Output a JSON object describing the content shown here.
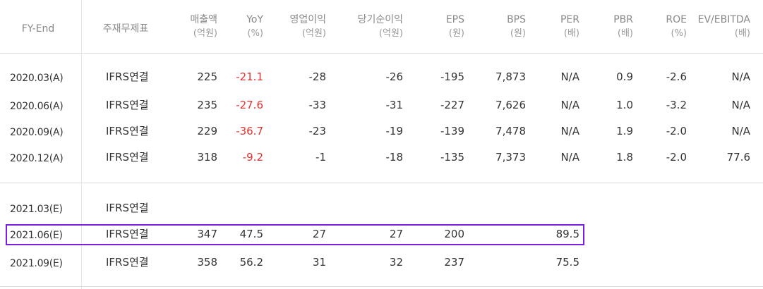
{
  "headers": [
    {
      "key": "fy",
      "l1": "FY-End",
      "l2": ""
    },
    {
      "key": "acct",
      "l1": "주재무제표",
      "l2": ""
    },
    {
      "key": "rev",
      "l1": "매출액",
      "l2": "(억원)"
    },
    {
      "key": "yoy",
      "l1": "YoY",
      "l2": "(%)"
    },
    {
      "key": "op",
      "l1": "영업이익",
      "l2": "(억원)"
    },
    {
      "key": "net",
      "l1": "당기순이익",
      "l2": "(억원)"
    },
    {
      "key": "eps",
      "l1": "EPS",
      "l2": "(원)"
    },
    {
      "key": "bps",
      "l1": "BPS",
      "l2": "(원)"
    },
    {
      "key": "per",
      "l1": "PER",
      "l2": "(배)"
    },
    {
      "key": "pbr",
      "l1": "PBR",
      "l2": "(배)"
    },
    {
      "key": "roe",
      "l1": "ROE",
      "l2": "(%)"
    },
    {
      "key": "ev",
      "l1": "EV/EBITDA",
      "l2": "(배)"
    }
  ],
  "rows": [
    {
      "fy": "2020.03(A)",
      "acct": "IFRS연결",
      "rev": "225",
      "yoy": "-21.1",
      "op": "-28",
      "net": "-26",
      "eps": "-195",
      "bps": "7,873",
      "per": "N/A",
      "pbr": "0.9",
      "roe": "-2.6",
      "ev": "N/A"
    },
    {
      "fy": "2020.06(A)",
      "acct": "IFRS연결",
      "rev": "235",
      "yoy": "-27.6",
      "op": "-33",
      "net": "-31",
      "eps": "-227",
      "bps": "7,626",
      "per": "N/A",
      "pbr": "1.0",
      "roe": "-3.2",
      "ev": "N/A"
    },
    {
      "fy": "2020.09(A)",
      "acct": "IFRS연결",
      "rev": "229",
      "yoy": "-36.7",
      "op": "-23",
      "net": "-19",
      "eps": "-139",
      "bps": "7,478",
      "per": "N/A",
      "pbr": "1.9",
      "roe": "-2.0",
      "ev": "N/A"
    },
    {
      "fy": "2020.12(A)",
      "acct": "IFRS연결",
      "rev": "318",
      "yoy": "-9.2",
      "op": "-1",
      "net": "-18",
      "eps": "-135",
      "bps": "7,373",
      "per": "N/A",
      "pbr": "1.8",
      "roe": "-2.0",
      "ev": "77.6"
    },
    {
      "fy": "2021.03(E)",
      "acct": "IFRS연결",
      "rev": "",
      "yoy": "",
      "op": "",
      "net": "",
      "eps": "",
      "bps": "",
      "per": "",
      "pbr": "",
      "roe": "",
      "ev": ""
    },
    {
      "fy": "2021.06(E)",
      "acct": "IFRS연결",
      "rev": "347",
      "yoy": "47.5",
      "op": "27",
      "net": "27",
      "eps": "200",
      "bps": "",
      "per": "89.5",
      "pbr": "",
      "roe": "",
      "ev": ""
    },
    {
      "fy": "2021.09(E)",
      "acct": "IFRS연결",
      "rev": "358",
      "yoy": "56.2",
      "op": "31",
      "net": "32",
      "eps": "237",
      "bps": "",
      "per": "75.5",
      "pbr": "",
      "roe": "",
      "ev": ""
    }
  ],
  "colors": {
    "negative": "#e0322e",
    "highlight": "#7a1fe0"
  }
}
